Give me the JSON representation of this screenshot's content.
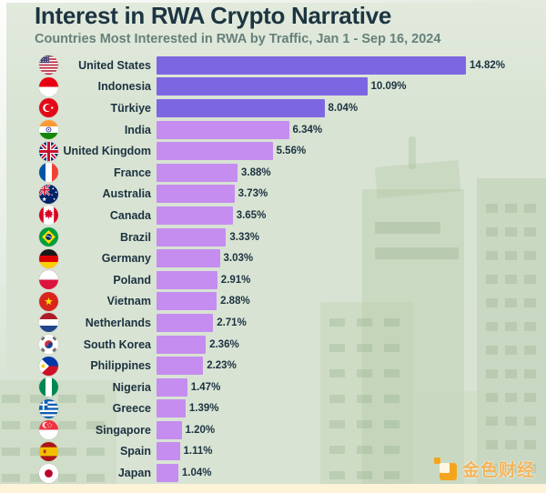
{
  "watermark": {
    "text": "金色财经"
  },
  "colors": {
    "background": "#d9e3d4",
    "bar_primary": "#7d66e2",
    "bar_secondary": "#c58df0",
    "text_dark": "#1b3240",
    "subtitle_gray": "#66807a",
    "bottom_strip": "#fcf3d8",
    "watermark_orange": "#f5a51d"
  },
  "chart_data": {
    "type": "bar",
    "orientation": "horizontal",
    "title": "Interest in RWA Crypto Narrative",
    "subtitle": "Countries Most Interested in RWA by Traffic, Jan 1 - Sep 16, 2024",
    "unit": "%",
    "xlim": [
      0,
      14.82
    ],
    "max_value": 14.82,
    "highlight_top_n": 3,
    "grid": false,
    "legend": "none",
    "rows": [
      {
        "country": "United States",
        "code": "us",
        "value": 14.82,
        "display": "14.82%"
      },
      {
        "country": "Indonesia",
        "code": "id",
        "value": 10.09,
        "display": "10.09%"
      },
      {
        "country": "Türkiye",
        "code": "tr",
        "value": 8.04,
        "display": "8.04%"
      },
      {
        "country": "India",
        "code": "in",
        "value": 6.34,
        "display": "6.34%"
      },
      {
        "country": "United Kingdom",
        "code": "gb",
        "value": 5.56,
        "display": "5.56%"
      },
      {
        "country": "France",
        "code": "fr",
        "value": 3.88,
        "display": "3.88%"
      },
      {
        "country": "Australia",
        "code": "au",
        "value": 3.73,
        "display": "3.73%"
      },
      {
        "country": "Canada",
        "code": "ca",
        "value": 3.65,
        "display": "3.65%"
      },
      {
        "country": "Brazil",
        "code": "br",
        "value": 3.33,
        "display": "3.33%"
      },
      {
        "country": "Germany",
        "code": "de",
        "value": 3.03,
        "display": "3.03%"
      },
      {
        "country": "Poland",
        "code": "pl",
        "value": 2.91,
        "display": "2.91%"
      },
      {
        "country": "Vietnam",
        "code": "vn",
        "value": 2.88,
        "display": "2.88%"
      },
      {
        "country": "Netherlands",
        "code": "nl",
        "value": 2.71,
        "display": "2.71%"
      },
      {
        "country": "South Korea",
        "code": "kr",
        "value": 2.36,
        "display": "2.36%"
      },
      {
        "country": "Philippines",
        "code": "ph",
        "value": 2.23,
        "display": "2.23%"
      },
      {
        "country": "Nigeria",
        "code": "ng",
        "value": 1.47,
        "display": "1.47%"
      },
      {
        "country": "Greece",
        "code": "gr",
        "value": 1.39,
        "display": "1.39%"
      },
      {
        "country": "Singapore",
        "code": "sg",
        "value": 1.2,
        "display": "1.20%"
      },
      {
        "country": "Spain",
        "code": "es",
        "value": 1.11,
        "display": "1.11%"
      },
      {
        "country": "Japan",
        "code": "jp",
        "value": 1.04,
        "display": "1.04%"
      }
    ]
  }
}
